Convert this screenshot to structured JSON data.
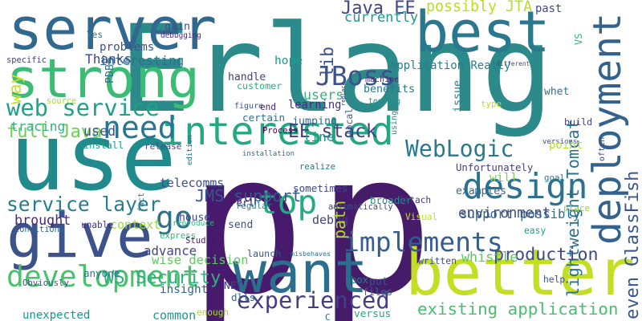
{
  "words": [
    {
      "t": "Erlang",
      "c": "#2c8a8a"
    },
    {
      "t": "p",
      "c": "#471a6d"
    },
    {
      "t": "p",
      "c": "#451b6a"
    },
    {
      "t": "server",
      "c": "#31688e"
    },
    {
      "t": "use",
      "c": "#208a8c"
    },
    {
      "t": "best",
      "c": "#2a788e"
    },
    {
      "t": "want",
      "c": "#2b6e8e"
    },
    {
      "t": "better",
      "c": "#c2df23"
    },
    {
      "t": "give",
      "c": "#3b528b"
    },
    {
      "t": "strong",
      "c": "#3cbb75"
    },
    {
      "t": "deployment",
      "c": "#33638d"
    },
    {
      "t": "interested",
      "c": "#24a884"
    },
    {
      "t": "development",
      "c": "#4ac16d"
    },
    {
      "t": "design",
      "c": "#2c718e"
    },
    {
      "t": "need",
      "c": "#2b758e"
    },
    {
      "t": "top",
      "c": "#25ab82"
    },
    {
      "t": "web service",
      "c": "#1fa188"
    },
    {
      "t": "go",
      "c": "#2d708e"
    },
    {
      "t": "implements",
      "c": "#365d8d"
    },
    {
      "t": "experienced",
      "c": "#433e85"
    },
    {
      "t": "JBoss",
      "c": "#3b528b"
    },
    {
      "t": "WebLogic",
      "c": "#2a788e"
    },
    {
      "t": "service layer",
      "c": "#287d8e"
    },
    {
      "t": "existing application",
      "c": "#46c06f"
    },
    {
      "t": "lightweight Tomcat",
      "c": "#2c728e"
    },
    {
      "t": "even GlassFish",
      "c": "#3a548c"
    },
    {
      "t": "application Really",
      "c": "#297b8e"
    },
    {
      "t": "support possibly",
      "c": "#2f6c8e"
    },
    {
      "t": "full Java",
      "c": "#6ece58"
    },
    {
      "t": "WS Security",
      "c": "#2db27d"
    },
    {
      "t": "wise decision",
      "c": "#5ec962"
    },
    {
      "t": "JMS support",
      "c": "#39568c"
    },
    {
      "t": "production",
      "c": "#3e4989"
    },
    {
      "t": "EE stack",
      "c": "#433d84"
    },
    {
      "t": "Java EE",
      "c": "#3f4788"
    },
    {
      "t": "possibly JTA",
      "c": "#b5de2b"
    },
    {
      "t": "way",
      "c": "#c8e020"
    },
    {
      "t": "currently",
      "c": "#1f9a8a"
    },
    {
      "t": "debug",
      "c": "#414487"
    },
    {
      "t": "path",
      "c": "#b2dd2d"
    },
    {
      "t": "whistle",
      "c": "#5cc863"
    },
    {
      "t": "environment",
      "c": "#3e4c8a"
    },
    {
      "t": "brought",
      "c": "#482878"
    },
    {
      "t": "context",
      "c": "#98d83e"
    },
    {
      "t": "unexpected",
      "c": "#1f958b"
    },
    {
      "t": "advance",
      "c": "#3f4889"
    },
    {
      "t": "insight",
      "c": "#33638d"
    },
    {
      "t": "benefits",
      "c": "#2a788e"
    },
    {
      "t": "users",
      "c": "#35b779"
    },
    {
      "t": "learning",
      "c": "#472d7b"
    },
    {
      "t": "jumping",
      "c": "#2f6b8e"
    },
    {
      "t": "broader",
      "c": "#21918c"
    },
    {
      "t": "anyone",
      "c": "#2c728e"
    },
    {
      "t": "common",
      "c": "#1f998a"
    },
    {
      "t": "examples",
      "c": "#31688e"
    },
    {
      "t": "telecomms",
      "c": "#3d4e8a"
    },
    {
      "t": "problems",
      "c": "#3b528b"
    },
    {
      "t": "interesting",
      "c": "#2d708e"
    },
    {
      "t": "Thanks",
      "c": "#3e4a89"
    },
    {
      "t": "tracing",
      "c": "#2fb47c"
    },
    {
      "t": "lib",
      "c": "#3c4f8a"
    },
    {
      "t": "hope",
      "c": "#1f9e89"
    },
    {
      "t": "will",
      "c": "#7ad151"
    },
    {
      "t": "used",
      "c": "#3b528b"
    },
    {
      "t": "gain",
      "c": "#3c508b"
    },
    {
      "t": "line",
      "c": "#20928c"
    },
    {
      "t": "issue",
      "c": "#27808e"
    },
    {
      "t": "Perl",
      "c": "#471365"
    },
    {
      "t": "Attach",
      "c": "#46337f"
    },
    {
      "t": "sometimes",
      "c": "#3e4989"
    },
    {
      "t": "realize",
      "c": "#2a788e"
    },
    {
      "t": "installation",
      "c": "#2f6c8e"
    },
    {
      "t": "release",
      "c": "#3d4e8a"
    },
    {
      "t": "install",
      "c": "#1f9a8a"
    },
    {
      "t": "Process",
      "c": "#440154"
    },
    {
      "t": "certain",
      "c": "#2d708e"
    },
    {
      "t": "figure",
      "c": "#3b528b"
    },
    {
      "t": "customer",
      "c": "#29af7f"
    },
    {
      "t": "handle",
      "c": "#433e85"
    },
    {
      "t": "end",
      "c": "#482878"
    },
    {
      "t": "source",
      "c": "#a5db36"
    },
    {
      "t": "specific",
      "c": "#404688"
    },
    {
      "t": "PDBs",
      "c": "#2c728e"
    },
    {
      "t": "debugging",
      "c": "#472c7a"
    },
    {
      "t": "Yes",
      "c": "#2a788e"
    },
    {
      "t": "past",
      "c": "#3e4a89"
    },
    {
      "t": "whet",
      "c": "#2c728e"
    },
    {
      "t": "different",
      "c": "#404588"
    },
    {
      "t": "VS",
      "c": "#2fb47c"
    },
    {
      "t": "machine",
      "c": "#482475"
    },
    {
      "t": "replace",
      "c": "#443a83"
    },
    {
      "t": "testing",
      "c": "#1f948c"
    },
    {
      "t": "local",
      "c": "#38598c"
    },
    {
      "t": "using",
      "c": "#21918c"
    },
    {
      "t": "versions",
      "c": "#3e4c8a"
    },
    {
      "t": "build",
      "c": "#414487"
    },
    {
      "t": "type",
      "c": "#c0df25"
    },
    {
      "t": "point",
      "c": "#b8de29"
    },
    {
      "t": "often",
      "c": "#3f4788"
    },
    {
      "t": "goal",
      "c": "#2a788e"
    },
    {
      "t": "Unfortunately",
      "c": "#433e85"
    },
    {
      "t": "easy",
      "c": "#20a386"
    },
    {
      "t": "place",
      "c": "#90d743"
    },
    {
      "t": "help",
      "c": "#3b528b"
    },
    {
      "t": "written",
      "c": "#3d4e8a"
    },
    {
      "t": "files",
      "c": "#2e6f8e"
    },
    {
      "t": "put",
      "c": "#3a548c"
    },
    {
      "t": "box",
      "c": "#287c8e"
    },
    {
      "t": "versus",
      "c": "#22a785"
    },
    {
      "t": "C",
      "c": "#2f6c8e"
    },
    {
      "t": "enough",
      "c": "#a8db34"
    },
    {
      "t": "Obviously",
      "c": "#3b528b"
    },
    {
      "t": "unable",
      "c": "#472f7d"
    },
    {
      "t": "conditions",
      "c": "#31688e"
    },
    {
      "t": "house",
      "c": "#3e4a89"
    },
    {
      "t": "reproduce",
      "c": "#2fb47c"
    },
    {
      "t": "express",
      "c": "#34b679"
    },
    {
      "t": "Studio",
      "c": "#481668"
    },
    {
      "t": "fact",
      "c": "#2a788e"
    },
    {
      "t": "edition",
      "c": "#2f6c8e"
    },
    {
      "t": "NET",
      "c": "#3e4989"
    },
    {
      "t": "dlls",
      "c": "#31688e"
    },
    {
      "t": "launch",
      "c": "#3b528b"
    },
    {
      "t": "misbehaves",
      "c": "#2d708e"
    },
    {
      "t": "automatically",
      "c": "#3f4889"
    },
    {
      "t": "regular",
      "c": "#2a788e"
    },
    {
      "t": "send",
      "c": "#3b528b"
    },
    {
      "t": "Visual",
      "c": "#c2df23"
    }
  ]
}
